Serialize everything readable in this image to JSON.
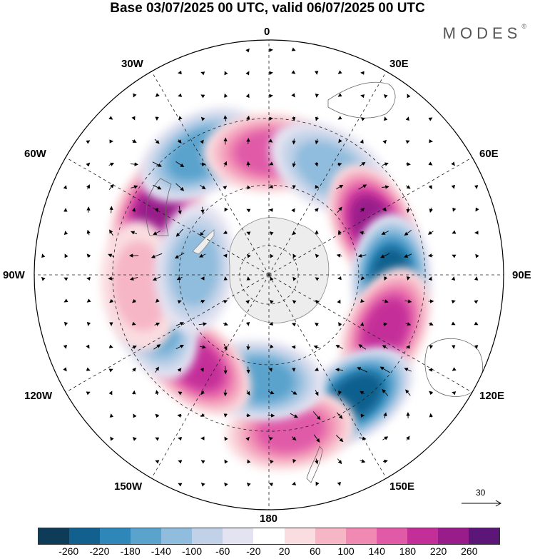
{
  "header": {
    "title": "Base 03/07/2025 00 UTC, valid 06/07/2025 00 UTC",
    "brand": "MODES",
    "brand_mark": "©"
  },
  "map": {
    "projection": "south-polar-stereographic",
    "graticule_labels": {
      "top": "0",
      "top_right": "30E",
      "right_upper": "60E",
      "right": "90E",
      "right_lower": "120E",
      "bottom_right": "150E",
      "bottom": "180",
      "bottom_left": "150W",
      "left_lower": "120W",
      "left": "90W",
      "left_upper": "60W",
      "top_left": "30W"
    },
    "reference_vector": "30",
    "anomaly_centers": [
      {
        "lon": -60,
        "lat": -48,
        "value": 230,
        "label": "positive"
      },
      {
        "lon": -30,
        "lat": -45,
        "value": -150,
        "label": "negative"
      },
      {
        "lon": 0,
        "lat": -50,
        "value": 140,
        "label": "positive"
      },
      {
        "lon": 30,
        "lat": -50,
        "value": -130,
        "label": "negative"
      },
      {
        "lon": 65,
        "lat": -52,
        "value": 250,
        "label": "positive"
      },
      {
        "lon": 92,
        "lat": -50,
        "value": -240,
        "label": "negative"
      },
      {
        "lon": 115,
        "lat": -48,
        "value": 210,
        "label": "positive"
      },
      {
        "lon": 145,
        "lat": -42,
        "value": -230,
        "label": "negative"
      },
      {
        "lon": 172,
        "lat": -40,
        "value": 150,
        "label": "positive"
      },
      {
        "lon": -175,
        "lat": -55,
        "value": -140,
        "label": "negative"
      },
      {
        "lon": -140,
        "lat": -52,
        "value": 190,
        "label": "positive"
      },
      {
        "lon": -110,
        "lat": -50,
        "value": -150,
        "label": "negative"
      },
      {
        "lon": -95,
        "lat": -48,
        "value": 60,
        "label": "positive"
      },
      {
        "lon": -85,
        "lat": -65,
        "value": -100,
        "label": "negative"
      }
    ]
  },
  "colorbar": {
    "colors": [
      "#0e3b57",
      "#11608e",
      "#2f86b8",
      "#5aa3cd",
      "#90bcdd",
      "#c1d2e8",
      "#e4e3f1",
      "#ffffff",
      "#fadde0",
      "#f6b6c6",
      "#f08ab2",
      "#e05aa8",
      "#c42e99",
      "#991c8b",
      "#5b1677"
    ],
    "tick_labels": [
      "-260",
      "-220",
      "-180",
      "-140",
      "-100",
      "-60",
      "-20",
      "20",
      "60",
      "100",
      "140",
      "180",
      "220",
      "260"
    ]
  }
}
